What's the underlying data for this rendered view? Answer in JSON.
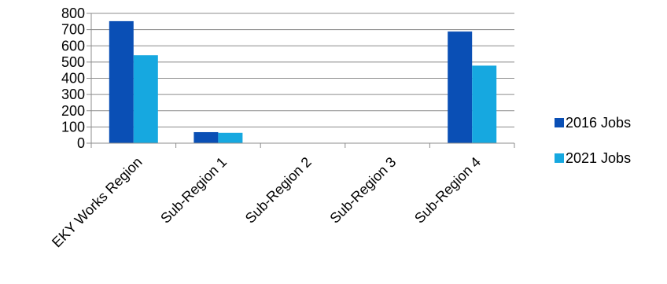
{
  "chart_data": {
    "type": "bar",
    "title": "",
    "xlabel": "",
    "ylabel": "",
    "categories": [
      "EKY Works Region",
      "Sub-Region 1",
      "Sub-Region 2",
      "Sub-Region 3",
      "Sub-Region 4"
    ],
    "series": [
      {
        "name": "2016 Jobs",
        "color": "#0a4fb5",
        "values": [
          752,
          68,
          0,
          0,
          688
        ]
      },
      {
        "name": "2021 Jobs",
        "color": "#16a8e0",
        "values": [
          542,
          64,
          0,
          0,
          478
        ]
      }
    ],
    "ylim": [
      0,
      800
    ],
    "yticks": [
      0,
      100,
      200,
      300,
      400,
      500,
      600,
      700,
      800
    ],
    "grid": true,
    "legend_position": "right"
  }
}
